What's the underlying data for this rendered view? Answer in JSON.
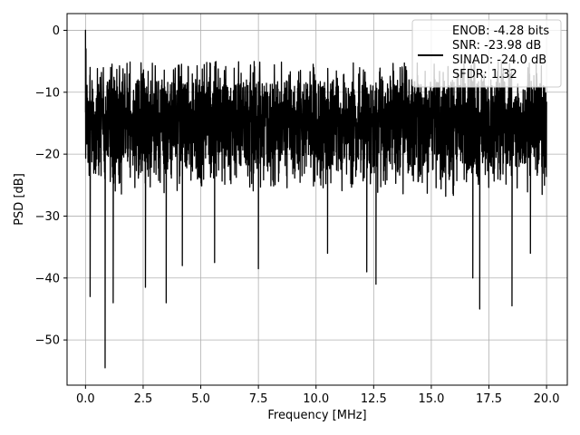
{
  "chart_data": {
    "type": "line",
    "title": "",
    "xlabel": "Frequency [MHz]",
    "ylabel": "PSD [dB]",
    "xlim": [
      -0.8,
      20.9
    ],
    "ylim": [
      -57.3,
      2.7
    ],
    "xticks": [
      0.0,
      2.5,
      5.0,
      7.5,
      10.0,
      12.5,
      15.0,
      17.5,
      20.0
    ],
    "xtick_labels": [
      "0.0",
      "2.5",
      "5.0",
      "7.5",
      "10.0",
      "12.5",
      "15.0",
      "17.5",
      "20.0"
    ],
    "yticks": [
      0,
      -10,
      -20,
      -30,
      -40,
      -50
    ],
    "ytick_labels": [
      "0",
      "−10",
      "−20",
      "−30",
      "−40",
      "−50"
    ],
    "grid": true,
    "legend_position": "top-right",
    "series_color": "#000000",
    "noise_band": {
      "x_start": 0.0,
      "x_end": 20.0,
      "typical_upper_db": -8,
      "typical_lower_db": -27
    },
    "peaks": [
      {
        "x": 0.0,
        "y": 0.0
      },
      {
        "x": 0.02,
        "y": -3.0
      },
      {
        "x": 0.2,
        "y": -6.0
      }
    ],
    "dips": [
      {
        "x": 0.2,
        "y": -43.0
      },
      {
        "x": 0.85,
        "y": -54.5
      },
      {
        "x": 1.2,
        "y": -44.0
      },
      {
        "x": 2.6,
        "y": -41.5
      },
      {
        "x": 3.5,
        "y": -44.0
      },
      {
        "x": 4.2,
        "y": -38.0
      },
      {
        "x": 5.6,
        "y": -37.5
      },
      {
        "x": 7.5,
        "y": -38.5
      },
      {
        "x": 10.5,
        "y": -36.0
      },
      {
        "x": 12.2,
        "y": -39.0
      },
      {
        "x": 12.6,
        "y": -41.0
      },
      {
        "x": 16.8,
        "y": -40.0
      },
      {
        "x": 17.1,
        "y": -45.0
      },
      {
        "x": 18.5,
        "y": -44.5
      },
      {
        "x": 19.3,
        "y": -36.0
      }
    ],
    "legend": {
      "lines": [
        "ENOB: -4.28 bits",
        "SNR: -23.98 dB",
        "SINAD: -24.0 dB",
        "SFDR: 1.32"
      ]
    }
  }
}
